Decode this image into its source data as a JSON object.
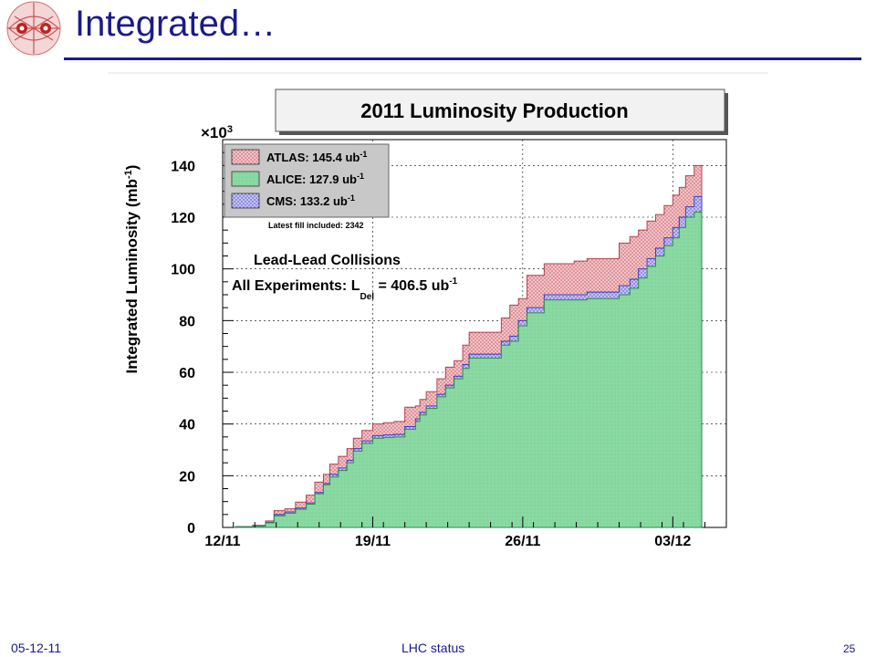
{
  "slide": {
    "title": "Integrated…",
    "footer_date": "05-12-11",
    "footer_center": "LHC status",
    "page_number": "25",
    "title_color": "#1a1a8c"
  },
  "chart_data": {
    "type": "area",
    "title": "2011 Luminosity Production",
    "ylabel_main": "Integrated Luminosity (mb",
    "ylabel_sup": "-1",
    "ylabel_close": ")",
    "y_multiplier_base": "×10",
    "y_multiplier_exp": "3",
    "ylim": [
      0,
      150
    ],
    "yticks": [
      "0",
      "20",
      "40",
      "60",
      "80",
      "100",
      "120",
      "140"
    ],
    "xlim": [
      0,
      23.5
    ],
    "xticks": [
      {
        "label": "12/11",
        "day": 0
      },
      {
        "label": "19/11",
        "day": 7
      },
      {
        "label": "26/11",
        "day": 14
      },
      {
        "label": "03/12",
        "day": 21
      }
    ],
    "grid": true,
    "legend_position": "top-left",
    "annotations": {
      "fill": "Latest fill included: 2342",
      "collisions": "Lead-Lead Collisions",
      "all_prefix": "All Experiments: L",
      "all_sub": "Del",
      "all_value": " = 406.5 ub",
      "all_sup": "-1"
    },
    "series": [
      {
        "name": "ATLAS: 145.4 ub",
        "sup": "-1",
        "color": "#e8a5a9",
        "stroke": "#b04050",
        "x": [
          0,
          0.6,
          1.4,
          2.0,
          2.4,
          2.9,
          3.4,
          3.9,
          4.3,
          4.7,
          5.0,
          5.4,
          5.8,
          6.1,
          6.5,
          7.0,
          7.5,
          8.0,
          8.5,
          9.0,
          9.2,
          9.5,
          10.0,
          10.4,
          10.8,
          11.2,
          11.5,
          12.0,
          12.6,
          13.0,
          13.4,
          13.8,
          14.2,
          15.0,
          15.8,
          16.4,
          17.0,
          17.8,
          18.5,
          19.0,
          19.4,
          19.8,
          20.2,
          20.6,
          21.0,
          21.3,
          21.6,
          22.0
        ],
        "y": [
          0,
          0.3,
          0.8,
          2.5,
          6.5,
          7.2,
          9.8,
          12.5,
          17.5,
          20.5,
          24.5,
          27.5,
          30.5,
          34.5,
          37.5,
          40.0,
          40.5,
          41.0,
          46.5,
          47.0,
          49.5,
          52.5,
          57.5,
          62.0,
          64.5,
          70.5,
          75.5,
          75.5,
          75.5,
          81.0,
          86.0,
          88.5,
          97.5,
          102.0,
          102.0,
          103.0,
          104.0,
          104.0,
          110.0,
          112.5,
          115.0,
          118.5,
          121.0,
          124.5,
          128.5,
          131.5,
          136.0,
          140.0
        ]
      },
      {
        "name": "ALICE: 127.9 ub",
        "sup": "-1",
        "color": "#7fd49a",
        "stroke": "#2a8a4a",
        "x": [
          0,
          0.6,
          1.4,
          2.0,
          2.4,
          2.9,
          3.4,
          3.9,
          4.3,
          4.7,
          5.0,
          5.4,
          5.8,
          6.1,
          6.5,
          7.0,
          7.5,
          8.0,
          8.5,
          9.0,
          9.2,
          9.5,
          10.0,
          10.4,
          10.8,
          11.2,
          11.5,
          12.0,
          12.6,
          13.0,
          13.4,
          13.8,
          14.2,
          15.0,
          15.8,
          16.4,
          17.0,
          17.8,
          18.5,
          19.0,
          19.4,
          19.8,
          20.2,
          20.6,
          21.0,
          21.3,
          21.6,
          22.0
        ],
        "y": [
          0,
          0.2,
          0.5,
          1.8,
          4.5,
          5.5,
          7.0,
          9.0,
          13.0,
          16.5,
          19.5,
          22.0,
          25.0,
          29.5,
          32.5,
          34.5,
          34.8,
          35.0,
          38.0,
          41.0,
          43.5,
          46.0,
          50.5,
          54.0,
          57.5,
          61.5,
          65.5,
          65.5,
          65.5,
          70.5,
          72.0,
          78.0,
          83.0,
          88.0,
          88.0,
          88.0,
          88.5,
          88.5,
          90.0,
          92.5,
          96.5,
          101.0,
          105.0,
          109.0,
          112.0,
          116.0,
          120.0,
          122.0
        ]
      },
      {
        "name": "CMS: 133.2 ub",
        "sup": "-1",
        "color": "#a8a8f2",
        "stroke": "#3a3ac0",
        "x": [
          0,
          0.6,
          1.4,
          2.0,
          2.4,
          2.9,
          3.4,
          3.9,
          4.3,
          4.7,
          5.0,
          5.4,
          5.8,
          6.1,
          6.5,
          7.0,
          7.5,
          8.0,
          8.5,
          9.0,
          9.2,
          9.5,
          10.0,
          10.4,
          10.8,
          11.2,
          11.5,
          12.0,
          12.6,
          13.0,
          13.4,
          13.8,
          14.2,
          15.0,
          15.8,
          16.4,
          17.0,
          17.8,
          18.5,
          19.0,
          19.4,
          19.8,
          20.2,
          20.6,
          21.0,
          21.3,
          21.6,
          22.0
        ],
        "y": [
          0,
          0.2,
          0.6,
          2.0,
          5.0,
          6.0,
          7.5,
          9.5,
          13.5,
          17.0,
          20.5,
          23.0,
          26.0,
          30.5,
          33.5,
          35.5,
          35.8,
          36.0,
          39.0,
          42.0,
          44.5,
          47.0,
          51.5,
          55.0,
          58.5,
          63.0,
          67.0,
          67.0,
          67.0,
          72.0,
          74.0,
          80.0,
          85.0,
          90.0,
          90.0,
          90.0,
          91.0,
          91.0,
          93.5,
          96.0,
          100.0,
          104.0,
          108.0,
          112.0,
          116.0,
          120.0,
          124.0,
          128.0
        ]
      }
    ]
  }
}
